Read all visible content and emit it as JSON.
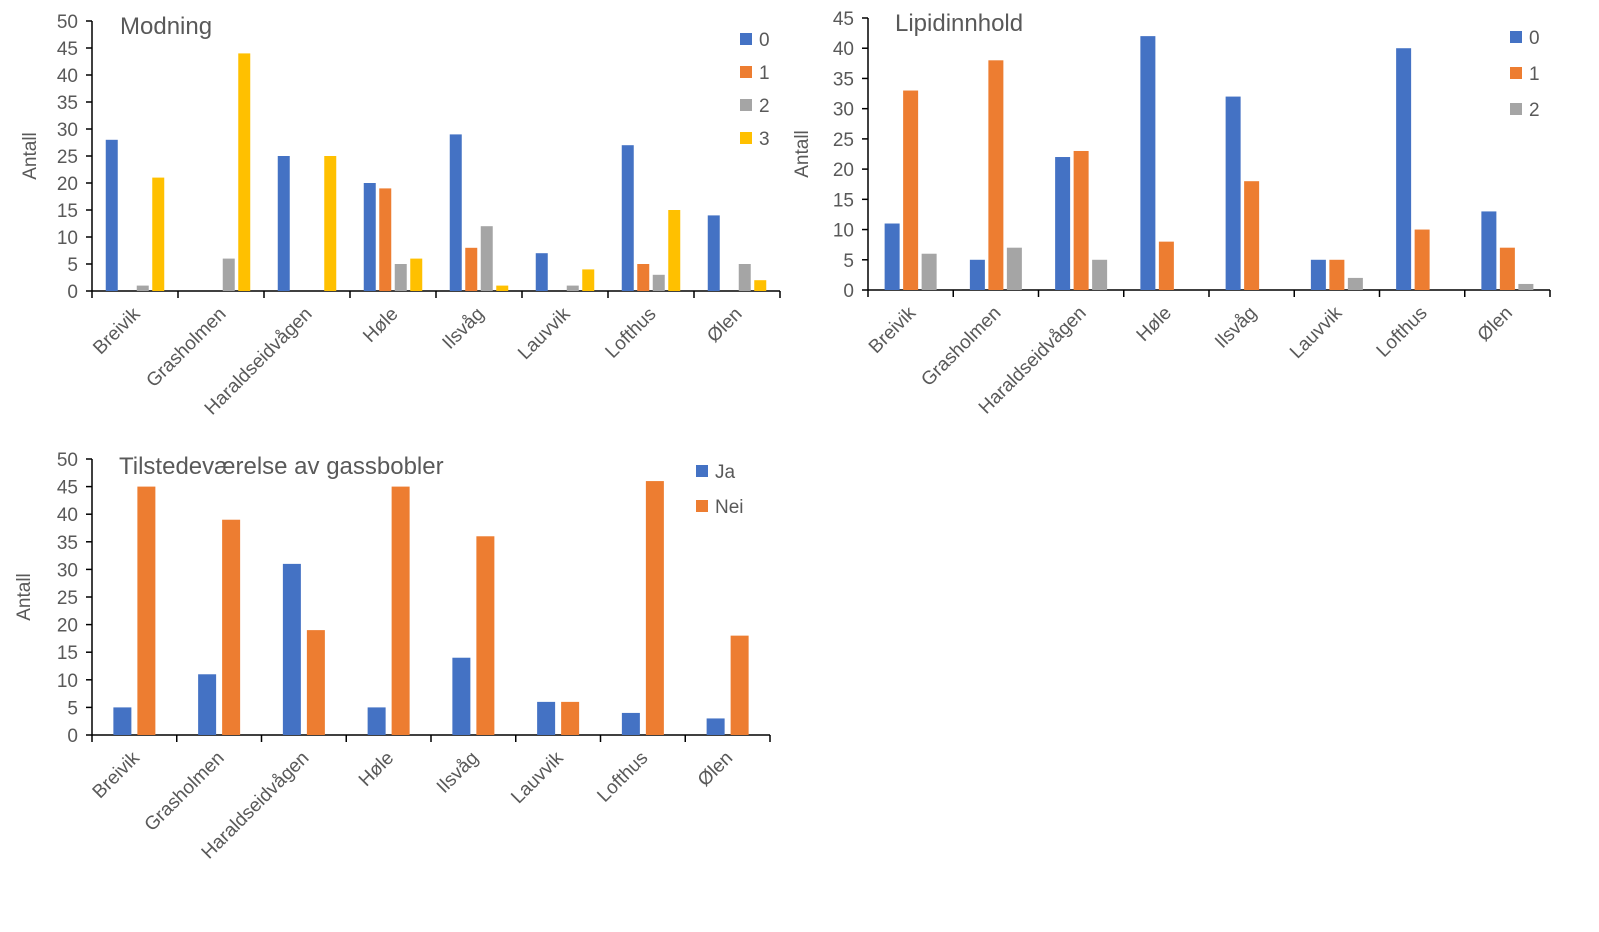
{
  "chart_data": [
    {
      "type": "bar",
      "title": "Modning",
      "xlabel": "",
      "ylabel": "Antall",
      "ylim": [
        0,
        50
      ],
      "ytick_step": 5,
      "legend_position": "top-right",
      "categories": [
        "Breivik",
        "Grasholmen",
        "Haraldseidvågen",
        "Høle",
        "Ilsvåg",
        "Lauvvik",
        "Lofthus",
        "Ølen"
      ],
      "series": [
        {
          "name": "0",
          "color": "#4472C4",
          "values": [
            28,
            0,
            25,
            20,
            29,
            7,
            27,
            14
          ]
        },
        {
          "name": "1",
          "color": "#ED7D31",
          "values": [
            0,
            0,
            0,
            19,
            8,
            0,
            5,
            0
          ]
        },
        {
          "name": "2",
          "color": "#A5A5A5",
          "values": [
            1,
            6,
            0,
            5,
            12,
            1,
            3,
            5
          ]
        },
        {
          "name": "3",
          "color": "#FFC000",
          "values": [
            21,
            44,
            25,
            6,
            1,
            4,
            15,
            2
          ]
        }
      ]
    },
    {
      "type": "bar",
      "title": "Lipidinnhold",
      "xlabel": "",
      "ylabel": "Antall",
      "ylim": [
        0,
        45
      ],
      "ytick_step": 5,
      "legend_position": "top-right",
      "categories": [
        "Breivik",
        "Grasholmen",
        "Haraldseidvågen",
        "Høle",
        "Ilsvåg",
        "Lauvvik",
        "Lofthus",
        "Ølen"
      ],
      "series": [
        {
          "name": "0",
          "color": "#4472C4",
          "values": [
            11,
            5,
            22,
            42,
            32,
            5,
            40,
            13
          ]
        },
        {
          "name": "1",
          "color": "#ED7D31",
          "values": [
            33,
            38,
            23,
            8,
            18,
            5,
            10,
            7
          ]
        },
        {
          "name": "2",
          "color": "#A5A5A5",
          "values": [
            6,
            7,
            5,
            0,
            0,
            2,
            0,
            1
          ]
        }
      ]
    },
    {
      "type": "bar",
      "title": "Tilstedeværelse av gassbobler",
      "xlabel": "",
      "ylabel": "Antall",
      "ylim": [
        0,
        50
      ],
      "ytick_step": 5,
      "legend_position": "top-right",
      "categories": [
        "Breivik",
        "Grasholmen",
        "Haraldseidvågen",
        "Høle",
        "Ilsvåg",
        "Lauvvik",
        "Lofthus",
        "Ølen"
      ],
      "series": [
        {
          "name": "Ja",
          "color": "#4472C4",
          "values": [
            5,
            11,
            31,
            5,
            14,
            6,
            4,
            3
          ]
        },
        {
          "name": "Nei",
          "color": "#ED7D31",
          "values": [
            45,
            39,
            19,
            45,
            36,
            6,
            46,
            18
          ]
        }
      ]
    }
  ]
}
